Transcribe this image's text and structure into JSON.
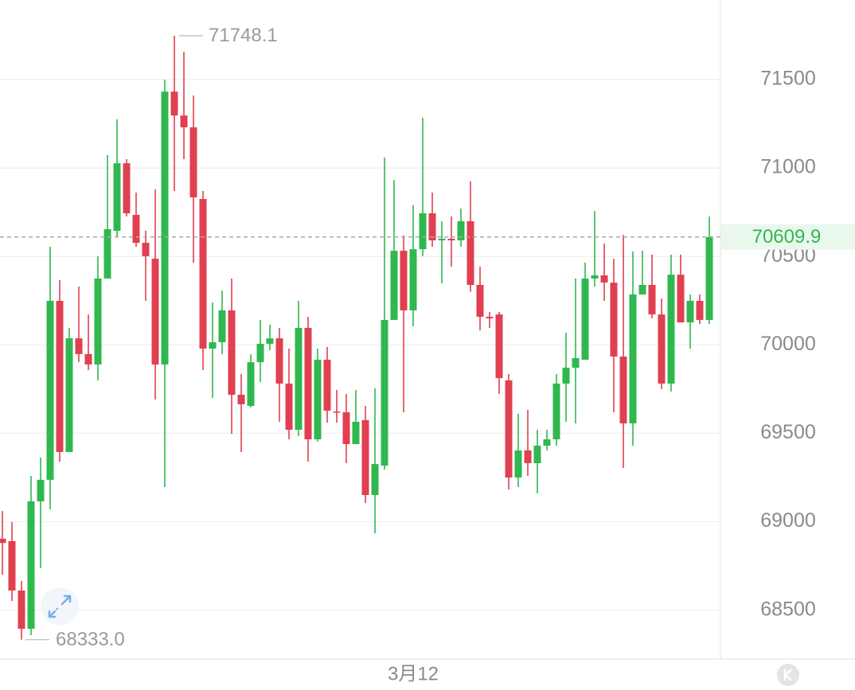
{
  "chart_data": {
    "type": "candlestick",
    "up_color": "#2fb84f",
    "down_color": "#e04050",
    "grid": true,
    "ylim": [
      68224,
      71950
    ],
    "yticks": [
      68500,
      69000,
      69500,
      70000,
      70500,
      71000,
      71500
    ],
    "categories": [
      null,
      null,
      null,
      null,
      null,
      null,
      null,
      null,
      null,
      null,
      null,
      null,
      null,
      null,
      null,
      null,
      null,
      null,
      null,
      null,
      null,
      null,
      null,
      null,
      null,
      null,
      null,
      null,
      null,
      null,
      null,
      null,
      null,
      null,
      null,
      null,
      null,
      null,
      null,
      null,
      null,
      null,
      null,
      "3月12",
      null,
      null,
      null,
      null,
      null,
      null,
      null,
      null,
      null,
      null,
      null,
      null,
      null,
      null,
      null,
      null,
      null,
      null,
      null,
      null,
      null,
      null,
      null,
      null,
      null,
      null,
      null,
      null,
      null,
      null,
      null
    ],
    "open": [
      68904,
      68890,
      68611,
      68395,
      69115,
      69237,
      70249,
      69394,
      70037,
      69948,
      69889,
      70375,
      70645,
      71027,
      70735,
      70577,
      70487,
      69889,
      71432,
      71297,
      71230,
      70825,
      69979,
      70015,
      70195,
      69718,
      69655,
      69902,
      70006,
      70037,
      69781,
      69520,
      70096,
      69466,
      69916,
      69623,
      69619,
      69439,
      69574,
      69151,
      69317,
      70141,
      70532,
      70195,
      70541,
      70744,
      70591,
      70600,
      70591,
      70699,
      70339,
      70159,
      70172,
      69799,
      69250,
      69403,
      69331,
      69430,
      69466,
      69781,
      69871,
      69916,
      70375,
      70393,
      70352,
      69934,
      69556,
      70285,
      70339,
      70172,
      69781,
      70397,
      70127,
      70249,
      70141
    ],
    "high": [
      69060,
      68998,
      68665,
      69259,
      69363,
      70555,
      70366,
      70096,
      70330,
      70172,
      70501,
      71073,
      71275,
      71050,
      70861,
      70645,
      70879,
      71500,
      71748.1,
      71657,
      71410,
      70870,
      70240,
      70307,
      70375,
      69835,
      69947,
      70141,
      70114,
      70096,
      69979,
      70249,
      70159,
      69979,
      69988,
      69745,
      69722,
      69745,
      69655,
      69754,
      71059,
      70933,
      70618,
      70789,
      71284,
      70861,
      70699,
      70726,
      70771,
      70924,
      70442,
      70186,
      70186,
      69835,
      69610,
      69632,
      69520,
      69520,
      69835,
      70069,
      70375,
      70465,
      70757,
      70573,
      70487,
      70622,
      70528,
      70532,
      70510,
      70262,
      70510,
      70510,
      70285,
      70285,
      70726
    ],
    "low": [
      68700,
      68552,
      68333,
      68359,
      68738,
      69070,
      69340,
      69394,
      69903,
      69857,
      69799,
      70375,
      70609,
      70726,
      70555,
      70249,
      69691,
      69196,
      70870,
      71050,
      70465,
      69857,
      69700,
      69947,
      69497,
      69394,
      69646,
      69790,
      69970,
      69565,
      69466,
      69484,
      69340,
      69452,
      69560,
      69560,
      69331,
      69439,
      69106,
      68935,
      69295,
      70141,
      69619,
      70105,
      70501,
      70555,
      70348,
      70442,
      70555,
      70300,
      70082,
      70096,
      69722,
      69182,
      69196,
      69259,
      69160,
      69403,
      69430,
      69565,
      69556,
      69916,
      70330,
      70249,
      69619,
      69304,
      69430,
      70285,
      70150,
      69750,
      69736,
      70127,
      69979,
      70118,
      70118
    ],
    "close": [
      68880,
      68611,
      68395,
      69115,
      69237,
      70249,
      69394,
      70037,
      69948,
      69889,
      70375,
      70654,
      71027,
      70744,
      70577,
      70501,
      69889,
      71432,
      71297,
      71230,
      70834,
      69979,
      70015,
      70195,
      69718,
      69664,
      69902,
      70006,
      70037,
      69781,
      69520,
      70096,
      69466,
      69916,
      69628,
      69619,
      69439,
      69565,
      69151,
      69326,
      70141,
      70532,
      70195,
      70541,
      70744,
      70591,
      70600,
      70591,
      70699,
      70339,
      70159,
      70150,
      69812,
      69250,
      69403,
      69331,
      69430,
      69466,
      69781,
      69871,
      69925,
      70375,
      70393,
      70352,
      69934,
      69556,
      70285,
      70339,
      70172,
      69781,
      70397,
      70127,
      70249,
      70141,
      70609.9
    ],
    "high_label": "71748.1",
    "low_label": "68333.0"
  }
}
